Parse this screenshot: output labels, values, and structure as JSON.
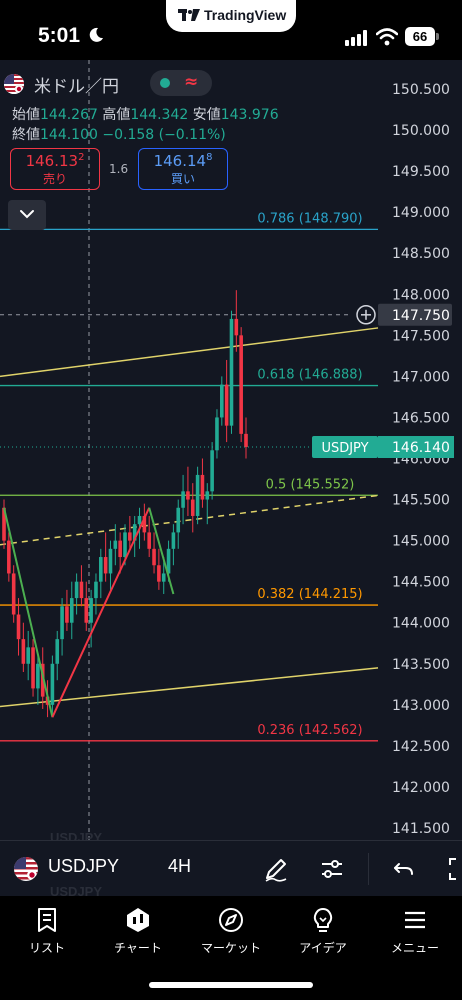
{
  "status_bar": {
    "time": "5:01",
    "battery": "66",
    "app_badge": "TradingView"
  },
  "legend": {
    "symbol_name": "米ドル／円",
    "open_label": "始値",
    "open": "144.267",
    "high_label": "高値",
    "high": "144.342",
    "low_label": "安値",
    "low": "143.976",
    "close_label": "終値",
    "close": "144.100",
    "change": "−0.158 (−0.11%)"
  },
  "trade": {
    "sell_price": "146.13",
    "sell_price_sup": "2",
    "sell_label": "売り",
    "spread": "1.6",
    "buy_price": "146.14",
    "buy_price_sup": "8",
    "buy_label": "買い"
  },
  "chart_data": {
    "type": "line",
    "title": "",
    "symbol": "USDJPY",
    "timeframe": "4H",
    "price_axis": {
      "ticks": [
        "150.500",
        "150.000",
        "149.500",
        "149.000",
        "148.500",
        "148.000",
        "147.500",
        "147.000",
        "146.500",
        "146.000",
        "145.500",
        "145.000",
        "144.500",
        "144.000",
        "143.500",
        "143.000",
        "142.500",
        "142.000",
        "141.500"
      ],
      "range": [
        141.45,
        150.7
      ]
    },
    "fib_levels": [
      {
        "label": "0.786 (148.790)",
        "price": 148.79,
        "color": "#2aa3c9"
      },
      {
        "label": "0.618 (146.888)",
        "price": 146.888,
        "color": "#22ab94"
      },
      {
        "label": "0.5 (145.552)",
        "price": 145.552,
        "color": "#7ec54a"
      },
      {
        "label": "0.382 (144.215)",
        "price": 144.215,
        "color": "#ff9800"
      },
      {
        "label": "0.236 (142.562)",
        "price": 142.562,
        "color": "#f23645"
      }
    ],
    "crosshair_price": "147.750",
    "last_price_label": "USDJPY",
    "last_price": "146.140",
    "zigzag": [
      {
        "i": 0,
        "p": 145.4
      },
      {
        "i": 10,
        "p": 142.85
      },
      {
        "i": 30,
        "p": 145.4
      },
      {
        "i": 35,
        "p": 144.35
      }
    ],
    "candles": [
      [
        145.4,
        145.5,
        144.9,
        145.0
      ],
      [
        145.0,
        145.1,
        144.5,
        144.6
      ],
      [
        144.6,
        144.7,
        144.0,
        144.1
      ],
      [
        144.1,
        144.3,
        143.6,
        143.8
      ],
      [
        143.8,
        144.0,
        143.4,
        143.5
      ],
      [
        143.5,
        143.9,
        143.3,
        143.7
      ],
      [
        143.7,
        143.8,
        143.1,
        143.2
      ],
      [
        143.2,
        143.6,
        143.0,
        143.5
      ],
      [
        143.5,
        143.7,
        142.95,
        143.1
      ],
      [
        143.1,
        143.3,
        142.85,
        143.0
      ],
      [
        143.0,
        143.6,
        142.85,
        143.5
      ],
      [
        143.5,
        143.9,
        143.3,
        143.8
      ],
      [
        143.8,
        144.3,
        143.6,
        144.2
      ],
      [
        144.2,
        144.4,
        143.9,
        144.0
      ],
      [
        144.0,
        144.5,
        143.8,
        144.3
      ],
      [
        144.3,
        144.6,
        144.1,
        144.5
      ],
      [
        144.5,
        144.7,
        144.2,
        144.3
      ],
      [
        144.3,
        144.5,
        143.9,
        144.0
      ],
      [
        144.0,
        144.4,
        143.7,
        144.3
      ],
      [
        144.3,
        144.6,
        144.1,
        144.5
      ],
      [
        144.5,
        144.9,
        144.3,
        144.8
      ],
      [
        144.8,
        145.1,
        144.5,
        144.6
      ],
      [
        144.6,
        145.0,
        144.4,
        144.9
      ],
      [
        144.9,
        145.2,
        144.7,
        145.0
      ],
      [
        145.0,
        145.1,
        144.6,
        144.8
      ],
      [
        144.8,
        145.2,
        144.7,
        145.1
      ],
      [
        145.1,
        145.3,
        144.9,
        145.0
      ],
      [
        145.0,
        145.3,
        144.8,
        145.2
      ],
      [
        145.2,
        145.4,
        144.9,
        145.3
      ],
      [
        145.3,
        145.45,
        145.0,
        145.1
      ],
      [
        145.1,
        145.3,
        144.8,
        144.9
      ],
      [
        144.9,
        145.1,
        144.6,
        144.7
      ],
      [
        144.7,
        144.9,
        144.4,
        144.5
      ],
      [
        144.5,
        144.8,
        144.35,
        144.6
      ],
      [
        144.6,
        145.0,
        144.5,
        144.9
      ],
      [
        144.9,
        145.2,
        144.7,
        145.1
      ],
      [
        145.1,
        145.5,
        144.9,
        145.4
      ],
      [
        145.4,
        145.8,
        145.2,
        145.6
      ],
      [
        145.6,
        145.9,
        145.3,
        145.5
      ],
      [
        145.5,
        145.7,
        145.1,
        145.3
      ],
      [
        145.3,
        145.9,
        145.2,
        145.8
      ],
      [
        145.8,
        146.0,
        145.4,
        145.5
      ],
      [
        145.5,
        145.7,
        145.2,
        145.6
      ],
      [
        145.6,
        146.2,
        145.5,
        146.1
      ],
      [
        146.1,
        146.6,
        146.0,
        146.5
      ],
      [
        146.5,
        147.0,
        146.4,
        146.9
      ],
      [
        146.9,
        147.2,
        146.2,
        146.4
      ],
      [
        146.4,
        147.8,
        146.3,
        147.7
      ],
      [
        147.7,
        148.05,
        147.3,
        147.5
      ],
      [
        147.5,
        147.6,
        146.2,
        146.3
      ],
      [
        146.3,
        146.5,
        146.0,
        146.14
      ]
    ]
  },
  "toolbar": {
    "symbol": "USDJPY",
    "timeframe": "4H",
    "ghost_text": "USDJPY"
  },
  "nav": {
    "items": [
      {
        "label": "リスト"
      },
      {
        "label": "チャート"
      },
      {
        "label": "マーケット"
      },
      {
        "label": "アイデア"
      },
      {
        "label": "メニュー"
      }
    ]
  }
}
